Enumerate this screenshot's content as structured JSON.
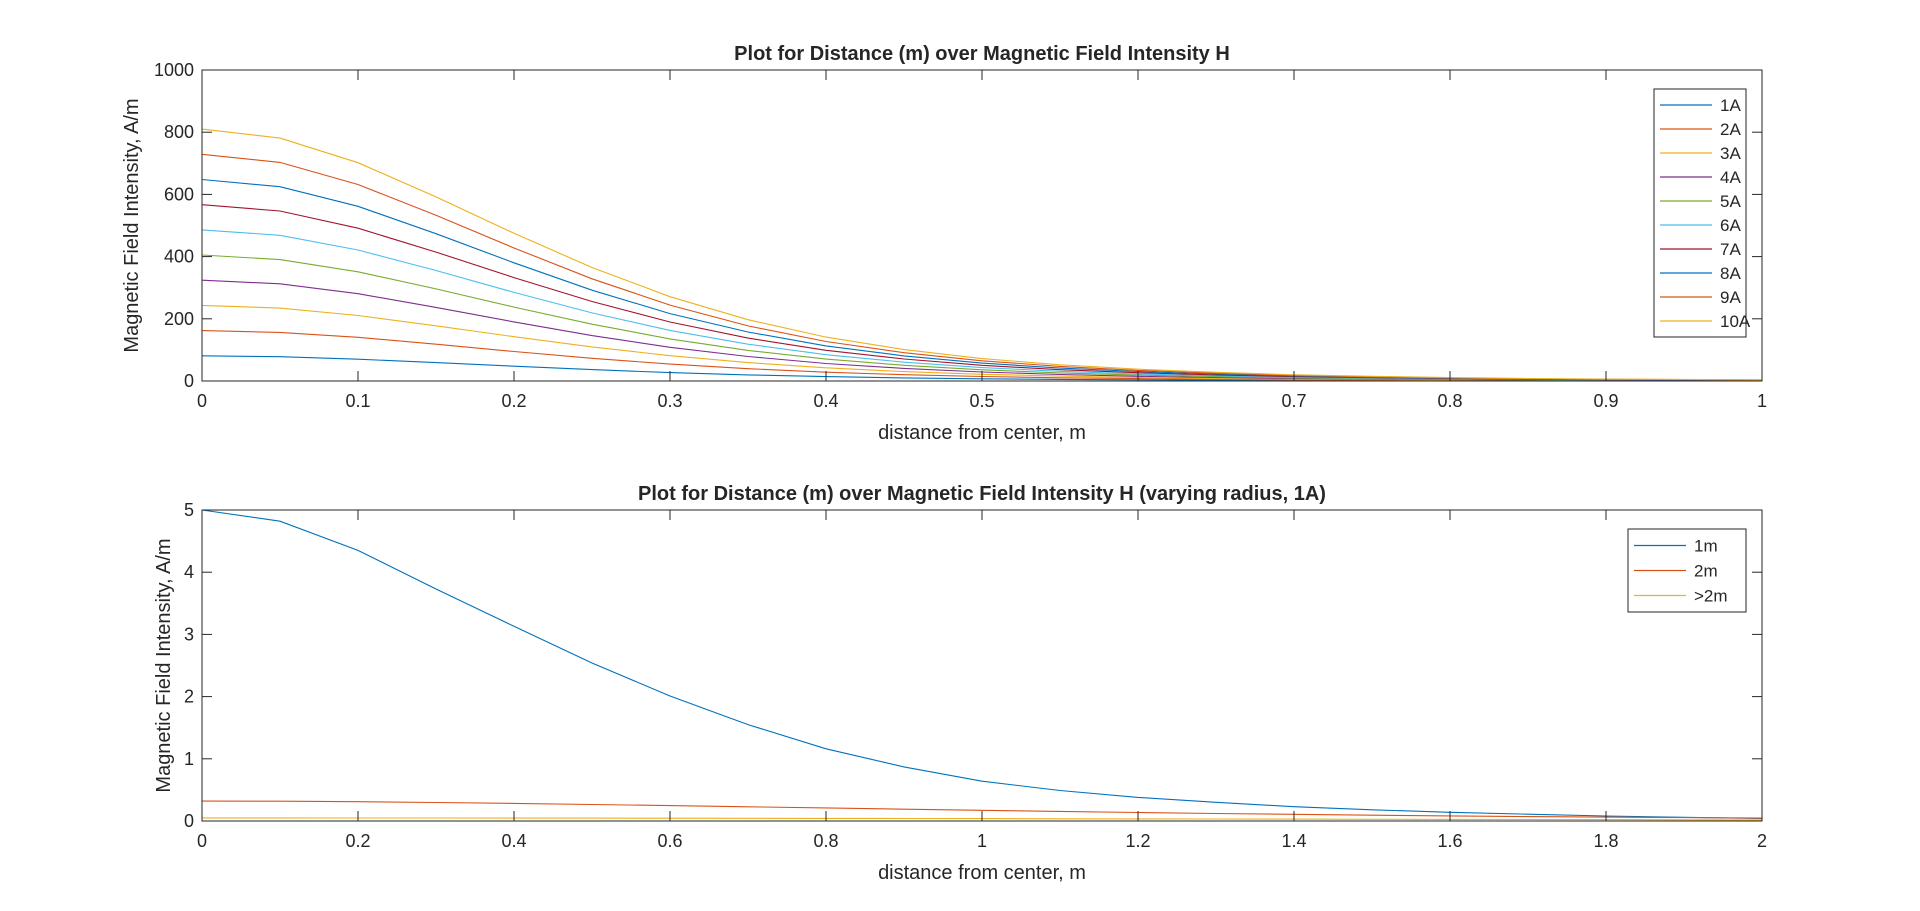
{
  "chart_data": [
    {
      "type": "line",
      "title": "Plot for Distance (m) over Magnetic Field Intensity H",
      "xlabel": "distance from center, m",
      "ylabel": "Magnetic Field Intensity, A/m",
      "xlim": [
        0,
        1
      ],
      "ylim": [
        0,
        1000
      ],
      "xticks": [
        0,
        0.1,
        0.2,
        0.3,
        0.4,
        0.5,
        0.6,
        0.7,
        0.8,
        0.9,
        1
      ],
      "xtick_labels": [
        "0",
        "0.1",
        "0.2",
        "0.3",
        "0.4",
        "0.5",
        "0.6",
        "0.7",
        "0.8",
        "0.9",
        "1"
      ],
      "yticks": [
        0,
        200,
        400,
        600,
        800,
        1000
      ],
      "ytick_labels": [
        "0",
        "200",
        "400",
        "600",
        "800",
        "1000"
      ],
      "grid": false,
      "legend_position": "top-right",
      "x": [
        0,
        0.05,
        0.1,
        0.15,
        0.2,
        0.25,
        0.3,
        0.35,
        0.4,
        0.45,
        0.5,
        0.55,
        0.6,
        0.65,
        0.7,
        0.75,
        0.8,
        0.85,
        0.9,
        0.95,
        1
      ],
      "series": [
        {
          "name": "1A",
          "color": "#0072BD",
          "values": [
            81,
            78.1,
            70.2,
            59.2,
            47.5,
            36.5,
            27.1,
            19.7,
            14.1,
            10.1,
            7.2,
            5.2,
            3.8,
            2.8,
            2.0,
            1.5,
            1.1,
            0.8,
            0.6,
            0.5,
            0.4
          ]
        },
        {
          "name": "2A",
          "color": "#D95319",
          "values": [
            162,
            156.2,
            140.4,
            118.4,
            95,
            73,
            54.2,
            39.4,
            28.2,
            20.2,
            14.4,
            10.4,
            7.6,
            5.6,
            4.0,
            3.0,
            2.2,
            1.6,
            1.2,
            1.0,
            0.8
          ]
        },
        {
          "name": "3A",
          "color": "#EDB120",
          "values": [
            243,
            234.3,
            210.6,
            177.6,
            142.5,
            109.5,
            81.3,
            59.1,
            42.3,
            30.3,
            21.6,
            15.6,
            11.4,
            8.4,
            6.0,
            4.5,
            3.3,
            2.4,
            1.8,
            1.5,
            1.2
          ]
        },
        {
          "name": "4A",
          "color": "#7E2F8E",
          "values": [
            324,
            312.4,
            280.8,
            236.8,
            190,
            146,
            108.4,
            78.8,
            56.4,
            40.4,
            28.8,
            20.8,
            15.2,
            11.2,
            8.0,
            6.0,
            4.4,
            3.2,
            2.4,
            2.0,
            1.6
          ]
        },
        {
          "name": "5A",
          "color": "#77AC30",
          "values": [
            405,
            390.5,
            351,
            296,
            237.5,
            182.5,
            135.5,
            98.5,
            70.5,
            50.5,
            36,
            26,
            19,
            14,
            10,
            7.5,
            5.5,
            4,
            3,
            2.5,
            2
          ]
        },
        {
          "name": "6A",
          "color": "#4DBEEE",
          "values": [
            486,
            468.6,
            421.2,
            355.2,
            285,
            219,
            162.6,
            118.2,
            84.6,
            60.6,
            43.2,
            31.2,
            22.8,
            16.8,
            12,
            9,
            6.6,
            4.8,
            3.6,
            3,
            2.4
          ]
        },
        {
          "name": "7A",
          "color": "#A2142F",
          "values": [
            567,
            546.7,
            491.4,
            414.4,
            332.5,
            255.5,
            189.7,
            137.9,
            98.7,
            70.7,
            50.4,
            36.4,
            26.6,
            19.6,
            14,
            10.5,
            7.7,
            5.6,
            4.2,
            3.5,
            2.8
          ]
        },
        {
          "name": "8A",
          "color": "#0072BD",
          "values": [
            648,
            624.8,
            561.6,
            473.6,
            380,
            292,
            216.8,
            157.6,
            112.8,
            80.8,
            57.6,
            41.6,
            30.4,
            22.4,
            16,
            12,
            8.8,
            6.4,
            4.8,
            4,
            3.2
          ]
        },
        {
          "name": "9A",
          "color": "#D95319",
          "values": [
            729,
            702.9,
            631.8,
            532.8,
            427.5,
            328.5,
            243.9,
            177.3,
            126.9,
            90.9,
            64.8,
            46.8,
            34.2,
            25.2,
            18,
            13.5,
            9.9,
            7.2,
            5.4,
            4.5,
            3.6
          ]
        },
        {
          "name": "10A",
          "color": "#EDB120",
          "values": [
            810,
            781,
            702,
            592,
            475,
            365,
            271,
            197,
            141,
            101,
            72,
            52,
            38,
            28,
            20,
            15,
            11,
            8,
            6,
            5,
            4
          ]
        }
      ]
    },
    {
      "type": "line",
      "title": "Plot for Distance (m) over Magnetic Field Intensity H (varying radius, 1A)",
      "xlabel": "distance from center, m",
      "ylabel": "Magnetic Field Intensity, A/m",
      "xlim": [
        0,
        2
      ],
      "ylim": [
        0,
        5
      ],
      "xticks": [
        0,
        0.2,
        0.4,
        0.6,
        0.8,
        1,
        1.2,
        1.4,
        1.6,
        1.8,
        2
      ],
      "xtick_labels": [
        "0",
        "0.2",
        "0.4",
        "0.6",
        "0.8",
        "1",
        "1.2",
        "1.4",
        "1.6",
        "1.8",
        "2"
      ],
      "yticks": [
        0,
        1,
        2,
        3,
        4,
        5
      ],
      "ytick_labels": [
        "0",
        "1",
        "2",
        "3",
        "4",
        "5"
      ],
      "grid": false,
      "legend_position": "top-right",
      "x": [
        0,
        0.1,
        0.2,
        0.3,
        0.4,
        0.5,
        0.6,
        0.7,
        0.8,
        0.9,
        1.0,
        1.1,
        1.2,
        1.3,
        1.4,
        1.5,
        1.6,
        1.7,
        1.8,
        1.9,
        2.0
      ],
      "series": [
        {
          "name": "1m",
          "color": "#0072BD",
          "values": [
            5,
            4.82,
            4.35,
            3.73,
            3.13,
            2.54,
            2.01,
            1.55,
            1.16,
            0.87,
            0.64,
            0.49,
            0.38,
            0.3,
            0.23,
            0.18,
            0.14,
            0.11,
            0.08,
            0.06,
            0.04
          ]
        },
        {
          "name": "2m",
          "color": "#D95319",
          "values": [
            0.32,
            0.318,
            0.31,
            0.298,
            0.283,
            0.266,
            0.248,
            0.229,
            0.21,
            0.19,
            0.172,
            0.154,
            0.137,
            0.121,
            0.107,
            0.094,
            0.082,
            0.071,
            0.062,
            0.054,
            0.047
          ]
        },
        {
          "name": ">2m",
          "color": "#EDB120",
          "values": [
            0.05,
            0.05,
            0.049,
            0.048,
            0.047,
            0.046,
            0.045,
            0.044,
            0.042,
            0.04,
            0.038,
            0.036,
            0.034,
            0.032,
            0.03,
            0.028,
            0.026,
            0.024,
            0.022,
            0.02,
            0.018
          ]
        }
      ]
    }
  ]
}
